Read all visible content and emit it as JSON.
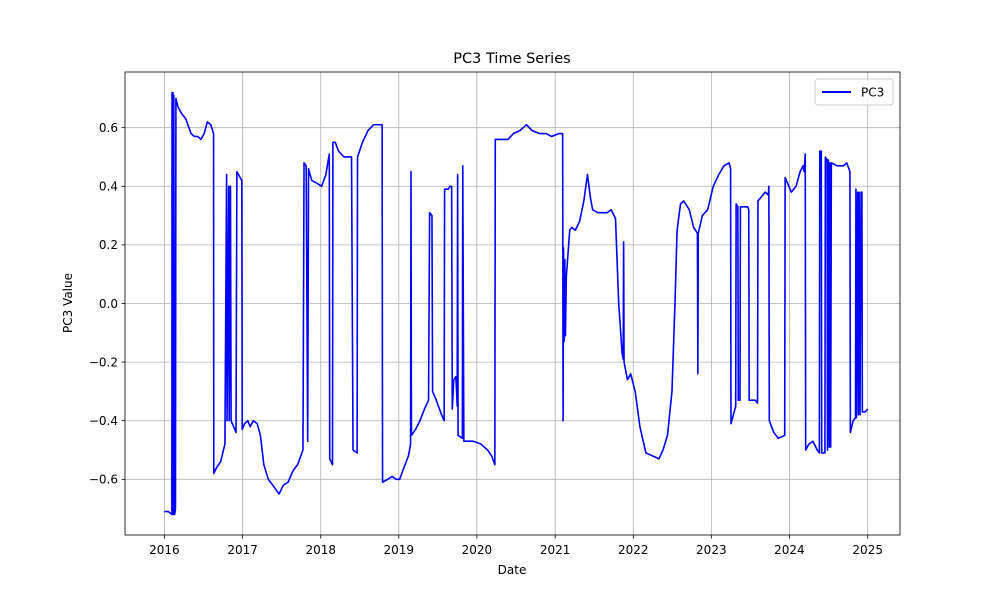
{
  "chart_data": {
    "type": "line",
    "title": "PC3 Time Series",
    "xlabel": "Date",
    "ylabel": "PC3 Value",
    "xlim": [
      "2015-07-01",
      "2025-06-01"
    ],
    "ylim": [
      -0.79,
      0.79
    ],
    "x_ticks": [
      "2016",
      "2017",
      "2018",
      "2019",
      "2020",
      "2021",
      "2022",
      "2023",
      "2024",
      "2025"
    ],
    "y_ticks": [
      "−0.6",
      "−0.4",
      "−0.2",
      "0.0",
      "0.2",
      "0.4",
      "0.6"
    ],
    "y_tick_values": [
      -0.6,
      -0.4,
      -0.2,
      0.0,
      0.2,
      0.4,
      0.6
    ],
    "grid": true,
    "legend_position": "top-right",
    "colors": {
      "series": "#0000ff",
      "grid": "#b0b0b0",
      "axes": "#000000"
    },
    "series": [
      {
        "name": "PC3",
        "points": [
          [
            "2016-01-01",
            -0.71
          ],
          [
            "2016-01-20",
            -0.71
          ],
          [
            "2016-02-05",
            -0.72
          ],
          [
            "2016-02-06",
            0.72
          ],
          [
            "2016-02-08",
            -0.72
          ],
          [
            "2016-02-10",
            0.72
          ],
          [
            "2016-02-12",
            -0.72
          ],
          [
            "2016-02-14",
            0.71
          ],
          [
            "2016-02-18",
            -0.72
          ],
          [
            "2016-02-22",
            -0.7
          ],
          [
            "2016-02-24",
            0.7
          ],
          [
            "2016-03-05",
            0.67
          ],
          [
            "2016-03-20",
            0.65
          ],
          [
            "2016-04-10",
            0.63
          ],
          [
            "2016-04-25",
            0.6
          ],
          [
            "2016-05-05",
            0.58
          ],
          [
            "2016-05-20",
            0.57
          ],
          [
            "2016-06-05",
            0.57
          ],
          [
            "2016-06-20",
            0.56
          ],
          [
            "2016-07-05",
            0.58
          ],
          [
            "2016-07-20",
            0.62
          ],
          [
            "2016-08-05",
            0.61
          ],
          [
            "2016-08-18",
            0.58
          ],
          [
            "2016-08-19",
            -0.58
          ],
          [
            "2016-09-01",
            -0.56
          ],
          [
            "2016-09-20",
            -0.54
          ],
          [
            "2016-10-10",
            -0.48
          ],
          [
            "2016-10-18",
            0.44
          ],
          [
            "2016-10-20",
            -0.4
          ],
          [
            "2016-10-28",
            0.4
          ],
          [
            "2016-10-30",
            -0.4
          ],
          [
            "2016-11-05",
            0.4
          ],
          [
            "2016-11-08",
            -0.4
          ],
          [
            "2016-12-01",
            -0.44
          ],
          [
            "2016-12-05",
            0.45
          ],
          [
            "2016-12-20",
            0.43
          ],
          [
            "2016-12-28",
            0.42
          ],
          [
            "2016-12-30",
            -0.43
          ],
          [
            "2017-01-10",
            -0.41
          ],
          [
            "2017-01-25",
            -0.4
          ],
          [
            "2017-02-05",
            -0.42
          ],
          [
            "2017-02-20",
            -0.4
          ],
          [
            "2017-03-10",
            -0.41
          ],
          [
            "2017-03-25",
            -0.45
          ],
          [
            "2017-04-10",
            -0.55
          ],
          [
            "2017-05-01",
            -0.6
          ],
          [
            "2017-06-01",
            -0.63
          ],
          [
            "2017-06-20",
            -0.65
          ],
          [
            "2017-07-10",
            -0.62
          ],
          [
            "2017-08-01",
            -0.61
          ],
          [
            "2017-08-25",
            -0.57
          ],
          [
            "2017-09-15",
            -0.55
          ],
          [
            "2017-10-10",
            -0.5
          ],
          [
            "2017-10-15",
            0.48
          ],
          [
            "2017-10-25",
            0.47
          ],
          [
            "2017-11-01",
            -0.47
          ],
          [
            "2017-11-05",
            0.46
          ],
          [
            "2017-11-20",
            0.42
          ],
          [
            "2017-12-15",
            0.41
          ],
          [
            "2018-01-05",
            0.4
          ],
          [
            "2018-01-25",
            0.44
          ],
          [
            "2018-02-10",
            0.51
          ],
          [
            "2018-02-12",
            -0.53
          ],
          [
            "2018-02-25",
            -0.55
          ],
          [
            "2018-02-27",
            0.55
          ],
          [
            "2018-03-10",
            0.55
          ],
          [
            "2018-03-25",
            0.52
          ],
          [
            "2018-04-20",
            0.5
          ],
          [
            "2018-05-25",
            0.5
          ],
          [
            "2018-06-01",
            -0.5
          ],
          [
            "2018-06-20",
            -0.51
          ],
          [
            "2018-06-22",
            0.5
          ],
          [
            "2018-07-15",
            0.55
          ],
          [
            "2018-08-10",
            0.59
          ],
          [
            "2018-09-05",
            0.61
          ],
          [
            "2018-09-25",
            0.61
          ],
          [
            "2018-10-15",
            0.61
          ],
          [
            "2018-10-17",
            -0.61
          ],
          [
            "2018-11-10",
            -0.6
          ],
          [
            "2018-12-01",
            -0.59
          ],
          [
            "2018-12-20",
            -0.6
          ],
          [
            "2019-01-05",
            -0.6
          ],
          [
            "2019-01-20",
            -0.57
          ],
          [
            "2019-02-15",
            -0.52
          ],
          [
            "2019-02-25",
            -0.48
          ],
          [
            "2019-02-27",
            0.45
          ],
          [
            "2019-03-01",
            -0.45
          ],
          [
            "2019-03-20",
            -0.43
          ],
          [
            "2019-04-10",
            -0.4
          ],
          [
            "2019-05-01",
            -0.36
          ],
          [
            "2019-05-20",
            -0.33
          ],
          [
            "2019-05-25",
            0.31
          ],
          [
            "2019-06-05",
            0.3
          ],
          [
            "2019-06-08",
            -0.3
          ],
          [
            "2019-06-25",
            -0.33
          ],
          [
            "2019-07-20",
            -0.38
          ],
          [
            "2019-08-01",
            -0.4
          ],
          [
            "2019-08-03",
            0.39
          ],
          [
            "2019-08-20",
            0.39
          ],
          [
            "2019-08-28",
            0.4
          ],
          [
            "2019-09-05",
            0.4
          ],
          [
            "2019-09-08",
            -0.36
          ],
          [
            "2019-09-15",
            -0.26
          ],
          [
            "2019-09-25",
            -0.25
          ],
          [
            "2019-10-01",
            -0.35
          ],
          [
            "2019-10-03",
            0.44
          ],
          [
            "2019-10-05",
            -0.45
          ],
          [
            "2019-10-25",
            -0.46
          ],
          [
            "2019-10-27",
            0.47
          ],
          [
            "2019-11-01",
            -0.47
          ],
          [
            "2019-12-15",
            -0.47
          ],
          [
            "2020-01-20",
            -0.48
          ],
          [
            "2020-02-20",
            -0.5
          ],
          [
            "2020-03-10",
            -0.52
          ],
          [
            "2020-03-25",
            -0.55
          ],
          [
            "2020-03-27",
            0.56
          ],
          [
            "2020-05-01",
            0.56
          ],
          [
            "2020-05-25",
            0.56
          ],
          [
            "2020-06-20",
            0.58
          ],
          [
            "2020-07-20",
            0.59
          ],
          [
            "2020-08-20",
            0.61
          ],
          [
            "2020-09-15",
            0.59
          ],
          [
            "2020-10-20",
            0.58
          ],
          [
            "2020-11-20",
            0.58
          ],
          [
            "2020-12-15",
            0.57
          ],
          [
            "2021-01-20",
            0.58
          ],
          [
            "2021-02-05",
            0.58
          ],
          [
            "2021-02-07",
            -0.4
          ],
          [
            "2021-02-09",
            0.19
          ],
          [
            "2021-02-12",
            -0.13
          ],
          [
            "2021-02-15",
            0.15
          ],
          [
            "2021-02-18",
            -0.11
          ],
          [
            "2021-02-22",
            0.09
          ],
          [
            "2021-03-10",
            0.25
          ],
          [
            "2021-03-20",
            0.26
          ],
          [
            "2021-04-05",
            0.25
          ],
          [
            "2021-04-25",
            0.28
          ],
          [
            "2021-05-15",
            0.35
          ],
          [
            "2021-06-01",
            0.44
          ],
          [
            "2021-06-15",
            0.36
          ],
          [
            "2021-06-25",
            0.32
          ],
          [
            "2021-07-20",
            0.31
          ],
          [
            "2021-08-10",
            0.31
          ],
          [
            "2021-09-01",
            0.31
          ],
          [
            "2021-09-20",
            0.32
          ],
          [
            "2021-10-10",
            0.29
          ],
          [
            "2021-10-25",
            0.0
          ],
          [
            "2021-11-10",
            -0.17
          ],
          [
            "2021-11-15",
            -0.19
          ],
          [
            "2021-11-17",
            0.21
          ],
          [
            "2021-11-19",
            -0.2
          ],
          [
            "2021-12-05",
            -0.26
          ],
          [
            "2021-12-20",
            -0.24
          ],
          [
            "2022-01-10",
            -0.3
          ],
          [
            "2022-02-01",
            -0.42
          ],
          [
            "2022-03-01",
            -0.51
          ],
          [
            "2022-04-01",
            -0.52
          ],
          [
            "2022-05-01",
            -0.53
          ],
          [
            "2022-05-20",
            -0.5
          ],
          [
            "2022-06-10",
            -0.45
          ],
          [
            "2022-07-01",
            -0.3
          ],
          [
            "2022-07-15",
            0.0
          ],
          [
            "2022-07-25",
            0.25
          ],
          [
            "2022-08-10",
            0.34
          ],
          [
            "2022-08-25",
            0.35
          ],
          [
            "2022-09-20",
            0.32
          ],
          [
            "2022-10-10",
            0.26
          ],
          [
            "2022-10-28",
            0.24
          ],
          [
            "2022-10-30",
            -0.24
          ],
          [
            "2022-11-01",
            0.24
          ],
          [
            "2022-11-20",
            0.3
          ],
          [
            "2022-12-15",
            0.32
          ],
          [
            "2023-01-10",
            0.4
          ],
          [
            "2023-02-05",
            0.44
          ],
          [
            "2023-03-01",
            0.47
          ],
          [
            "2023-03-25",
            0.48
          ],
          [
            "2023-04-01",
            0.46
          ],
          [
            "2023-04-03",
            -0.41
          ],
          [
            "2023-04-25",
            -0.35
          ],
          [
            "2023-04-27",
            0.34
          ],
          [
            "2023-05-05",
            0.33
          ],
          [
            "2023-05-07",
            -0.33
          ],
          [
            "2023-05-15",
            -0.33
          ],
          [
            "2023-05-17",
            0.33
          ],
          [
            "2023-06-20",
            0.33
          ],
          [
            "2023-06-25",
            0.32
          ],
          [
            "2023-06-27",
            -0.33
          ],
          [
            "2023-07-25",
            -0.33
          ],
          [
            "2023-08-05",
            -0.34
          ],
          [
            "2023-08-07",
            0.35
          ],
          [
            "2023-09-10",
            0.38
          ],
          [
            "2023-09-25",
            0.37
          ],
          [
            "2023-09-27",
            0.4
          ],
          [
            "2023-09-29",
            -0.4
          ],
          [
            "2023-10-20",
            -0.44
          ],
          [
            "2023-11-10",
            -0.46
          ],
          [
            "2023-12-10",
            -0.45
          ],
          [
            "2023-12-12",
            0.43
          ],
          [
            "2024-01-10",
            0.38
          ],
          [
            "2024-02-01",
            0.4
          ],
          [
            "2024-02-20",
            0.45
          ],
          [
            "2024-03-05",
            0.47
          ],
          [
            "2024-03-10",
            0.45
          ],
          [
            "2024-03-15",
            0.51
          ],
          [
            "2024-03-17",
            -0.5
          ],
          [
            "2024-04-01",
            -0.48
          ],
          [
            "2024-04-20",
            -0.47
          ],
          [
            "2024-05-10",
            -0.5
          ],
          [
            "2024-05-20",
            -0.51
          ],
          [
            "2024-05-22",
            0.52
          ],
          [
            "2024-05-29",
            0.52
          ],
          [
            "2024-05-31",
            -0.51
          ],
          [
            "2024-06-15",
            -0.51
          ],
          [
            "2024-06-17",
            0.5
          ],
          [
            "2024-06-25",
            0.49
          ],
          [
            "2024-06-27",
            -0.5
          ],
          [
            "2024-07-01",
            0.49
          ],
          [
            "2024-07-05",
            -0.49
          ],
          [
            "2024-07-08",
            0.48
          ],
          [
            "2024-07-12",
            -0.49
          ],
          [
            "2024-07-15",
            0.48
          ],
          [
            "2024-08-10",
            0.47
          ],
          [
            "2024-09-10",
            0.47
          ],
          [
            "2024-09-25",
            0.48
          ],
          [
            "2024-10-10",
            0.45
          ],
          [
            "2024-10-12",
            -0.44
          ],
          [
            "2024-10-25",
            -0.4
          ],
          [
            "2024-11-05",
            -0.39
          ],
          [
            "2024-11-07",
            0.39
          ],
          [
            "2024-11-09",
            -0.39
          ],
          [
            "2024-11-15",
            0.38
          ],
          [
            "2024-11-18",
            -0.38
          ],
          [
            "2024-11-22",
            0.38
          ],
          [
            "2024-11-26",
            -0.38
          ],
          [
            "2024-12-01",
            0.38
          ],
          [
            "2024-12-05",
            0.38
          ],
          [
            "2024-12-07",
            -0.37
          ],
          [
            "2024-12-20",
            -0.37
          ],
          [
            "2025-01-01",
            -0.36
          ]
        ]
      }
    ]
  }
}
